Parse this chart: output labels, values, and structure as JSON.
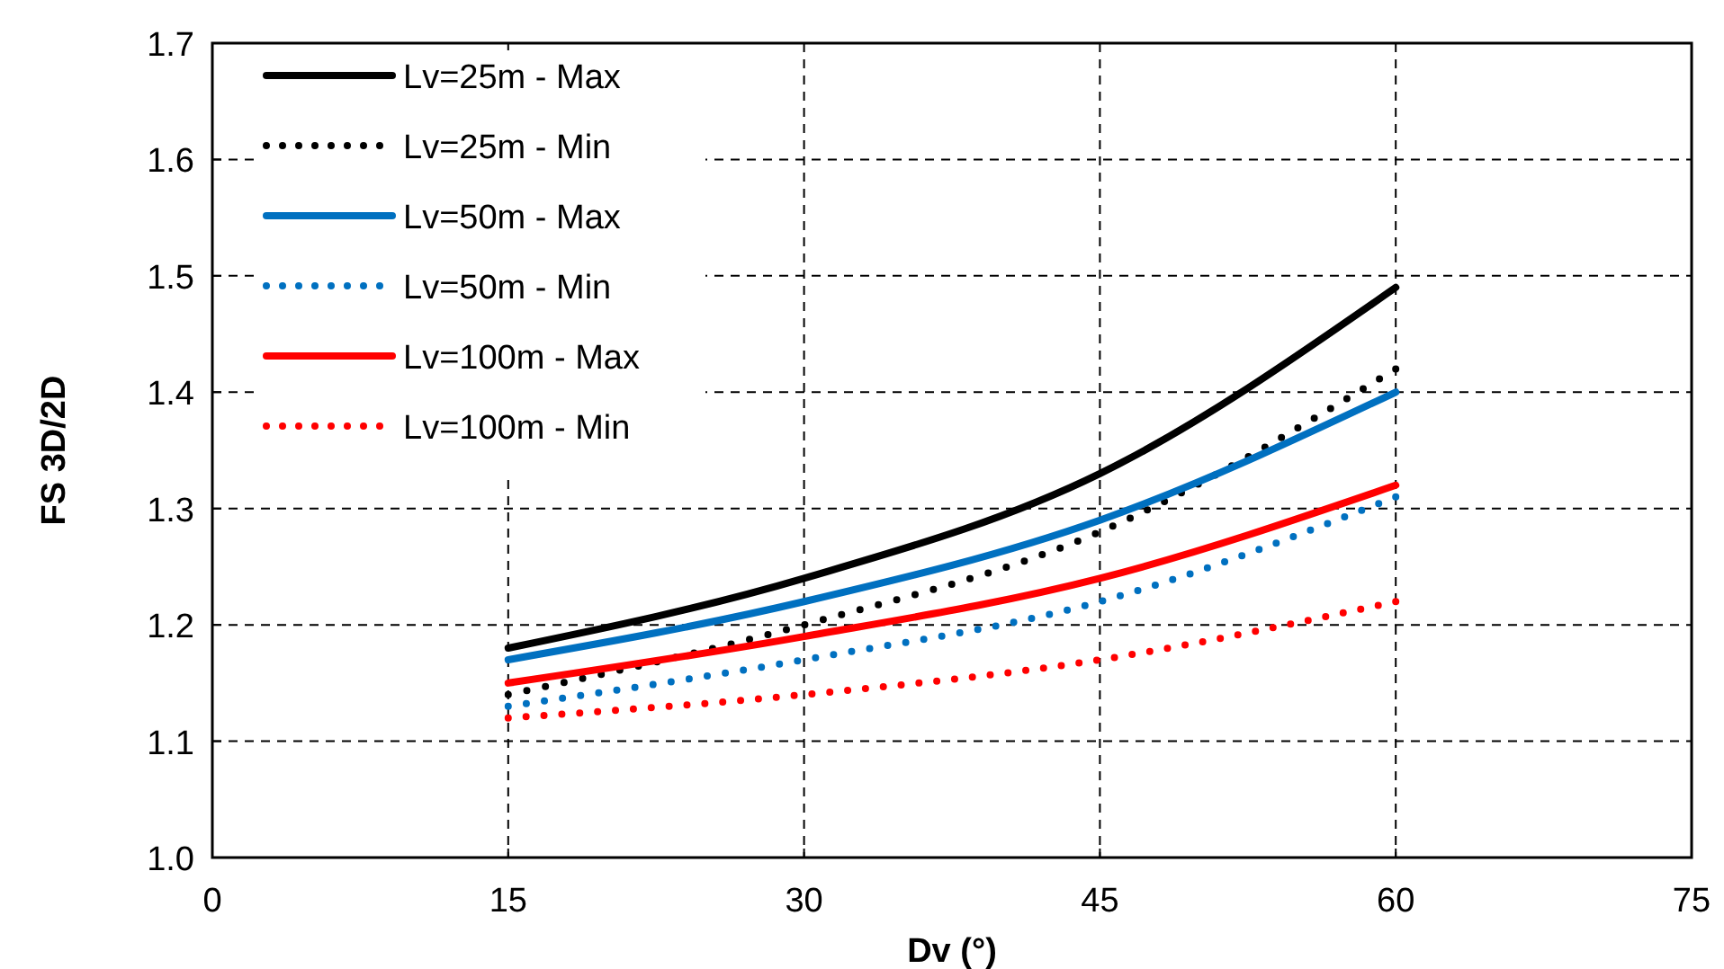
{
  "chart_data": {
    "type": "line",
    "xlabel": "Dv (°)",
    "ylabel": "FS 3D/2D",
    "x": [
      15,
      30,
      45,
      60
    ],
    "xlim": [
      0,
      75
    ],
    "xticks": [
      0,
      15,
      30,
      45,
      60,
      75
    ],
    "ylim": [
      1.0,
      1.7
    ],
    "yticks": [
      {
        "value": 1.0,
        "label": "1.0"
      },
      {
        "value": 1.1,
        "label": "1.1"
      },
      {
        "value": 1.2,
        "label": "1.2"
      },
      {
        "value": 1.3,
        "label": "1.3"
      },
      {
        "value": 1.4,
        "label": "1.4"
      },
      {
        "value": 1.5,
        "label": "1.5"
      },
      {
        "value": 1.6,
        "label": "1.6"
      },
      {
        "value": 1.7,
        "label": "1.7"
      }
    ],
    "grid": true,
    "legend": "top left",
    "marker": "none",
    "series": [
      {
        "name": "Lv=25m - Max",
        "color": "#000000",
        "line_style": "solid",
        "values": [
          1.18,
          1.24,
          1.33,
          1.49
        ]
      },
      {
        "name": "Lv=25m - Min",
        "color": "#000000",
        "line_style": "dotted",
        "values": [
          1.14,
          1.2,
          1.28,
          1.42
        ]
      },
      {
        "name": "Lv=50m - Max",
        "color": "#0070c0",
        "line_style": "solid",
        "values": [
          1.17,
          1.22,
          1.29,
          1.4
        ]
      },
      {
        "name": "Lv=50m - Min",
        "color": "#0070c0",
        "line_style": "dotted",
        "values": [
          1.13,
          1.17,
          1.22,
          1.31
        ]
      },
      {
        "name": "Lv=100m - Max",
        "color": "#ff0000",
        "line_style": "solid",
        "values": [
          1.15,
          1.19,
          1.24,
          1.32
        ]
      },
      {
        "name": "Lv=100m - Min",
        "color": "#ff0000",
        "line_style": "dotted",
        "values": [
          1.12,
          1.14,
          1.17,
          1.22
        ]
      }
    ]
  }
}
